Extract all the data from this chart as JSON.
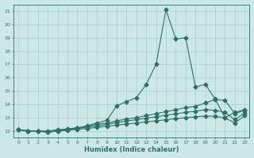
{
  "xlabel": "Humidex (Indice chaleur)",
  "ylabel": "",
  "bg_color": "#cce8e6",
  "line_color": "#2d7068",
  "grid_color": "#aacfcc",
  "xlim": [
    -0.5,
    23.5
  ],
  "ylim": [
    11.5,
    21.5
  ],
  "xticks": [
    0,
    1,
    2,
    3,
    4,
    5,
    6,
    7,
    8,
    9,
    10,
    11,
    12,
    13,
    14,
    15,
    16,
    17,
    18,
    19,
    20,
    21,
    22,
    23
  ],
  "yticks": [
    12,
    13,
    14,
    15,
    16,
    17,
    18,
    19,
    20,
    21
  ],
  "line1_y": [
    12.1,
    12.0,
    12.0,
    11.9,
    12.0,
    12.1,
    12.2,
    12.4,
    12.6,
    12.8,
    13.9,
    14.2,
    14.5,
    15.5,
    17.0,
    21.1,
    18.9,
    19.0,
    15.3,
    15.5,
    14.4,
    13.0,
    13.4,
    13.6
  ],
  "line2_y": [
    12.1,
    12.0,
    12.0,
    12.0,
    12.1,
    12.15,
    12.25,
    12.35,
    12.5,
    12.6,
    12.75,
    12.9,
    13.0,
    13.15,
    13.3,
    13.45,
    13.6,
    13.75,
    13.85,
    14.1,
    14.35,
    14.3,
    13.3,
    13.55
  ],
  "line3_y": [
    12.1,
    12.0,
    12.0,
    11.95,
    12.0,
    12.1,
    12.2,
    12.28,
    12.38,
    12.5,
    12.62,
    12.74,
    12.85,
    12.96,
    13.07,
    13.18,
    13.29,
    13.4,
    13.48,
    13.6,
    13.55,
    13.4,
    12.85,
    13.35
  ],
  "line4_y": [
    12.1,
    12.0,
    12.0,
    11.9,
    12.0,
    12.05,
    12.12,
    12.18,
    12.27,
    12.36,
    12.44,
    12.52,
    12.6,
    12.68,
    12.76,
    12.84,
    12.92,
    13.0,
    13.06,
    13.12,
    13.1,
    12.98,
    12.6,
    13.15
  ]
}
